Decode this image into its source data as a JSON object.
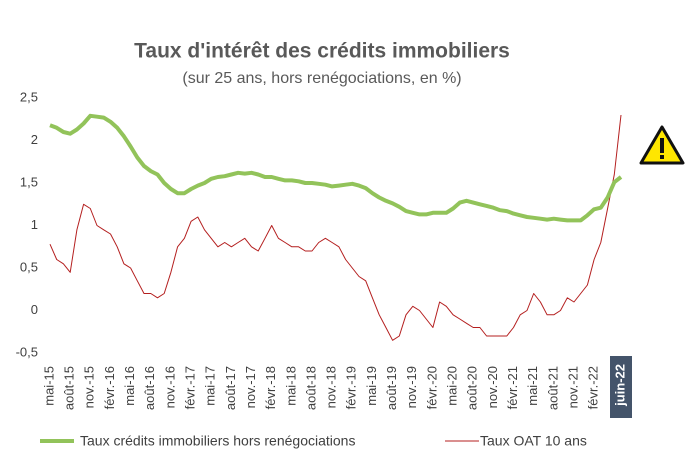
{
  "chart_data": {
    "type": "line",
    "title": "Taux d'intérêt des crédits immobiliers",
    "subtitle": "(sur 25 ans, hors renégociations, en %)",
    "categories": [
      "mai-15",
      null,
      null,
      "août-15",
      null,
      null,
      "nov.-15",
      null,
      null,
      "févr.-16",
      null,
      null,
      "mai-16",
      null,
      null,
      "août-16",
      null,
      null,
      "nov.-16",
      null,
      null,
      "févr.-17",
      null,
      null,
      "mai-17",
      null,
      null,
      "août-17",
      null,
      null,
      "nov.-17",
      null,
      null,
      "févr.-18",
      null,
      null,
      "mai-18",
      null,
      null,
      "août-18",
      null,
      null,
      "nov.-18",
      null,
      null,
      "févr.-19",
      null,
      null,
      "mai-19",
      null,
      null,
      "août-19",
      null,
      null,
      "nov.-19",
      null,
      null,
      "févr.-20",
      null,
      null,
      "mai-20",
      null,
      null,
      "août-20",
      null,
      null,
      "nov.-20",
      null,
      null,
      "févr.-21",
      null,
      null,
      "mai-21",
      null,
      null,
      "août-21",
      null,
      null,
      "nov.-21",
      null,
      null,
      "févr.-22",
      null,
      null,
      null,
      "juin-22"
    ],
    "highlight": {
      "index": 85,
      "color": "#44546a"
    },
    "series": [
      {
        "name": "Taux crédits immobiliers hors renégociations",
        "color": "#92c35a",
        "width": 4,
        "values": [
          2.18,
          2.15,
          2.1,
          2.08,
          2.13,
          2.2,
          2.29,
          2.28,
          2.27,
          2.22,
          2.15,
          2.05,
          1.93,
          1.8,
          1.7,
          1.64,
          1.6,
          1.5,
          1.43,
          1.38,
          1.38,
          1.43,
          1.47,
          1.5,
          1.55,
          1.57,
          1.58,
          1.6,
          1.62,
          1.61,
          1.62,
          1.6,
          1.57,
          1.57,
          1.55,
          1.53,
          1.53,
          1.52,
          1.5,
          1.5,
          1.49,
          1.48,
          1.46,
          1.47,
          1.48,
          1.49,
          1.47,
          1.44,
          1.38,
          1.33,
          1.29,
          1.26,
          1.22,
          1.17,
          1.15,
          1.13,
          1.13,
          1.15,
          1.15,
          1.15,
          1.2,
          1.27,
          1.29,
          1.27,
          1.25,
          1.23,
          1.21,
          1.18,
          1.17,
          1.14,
          1.12,
          1.1,
          1.09,
          1.08,
          1.07,
          1.08,
          1.07,
          1.06,
          1.06,
          1.06,
          1.12,
          1.19,
          1.21,
          1.33,
          1.51,
          1.57
        ]
      },
      {
        "name": "Taux OAT 10 ans",
        "color": "#b41f1f",
        "width": 1,
        "values": [
          0.78,
          0.6,
          0.55,
          0.45,
          0.95,
          1.25,
          1.2,
          1.0,
          0.95,
          0.9,
          0.75,
          0.55,
          0.5,
          0.35,
          0.2,
          0.2,
          0.15,
          0.2,
          0.45,
          0.75,
          0.85,
          1.05,
          1.1,
          0.95,
          0.85,
          0.75,
          0.8,
          0.75,
          0.8,
          0.85,
          0.75,
          0.7,
          0.85,
          1.0,
          0.85,
          0.8,
          0.75,
          0.75,
          0.7,
          0.7,
          0.8,
          0.85,
          0.8,
          0.75,
          0.6,
          0.5,
          0.4,
          0.35,
          0.15,
          -0.05,
          -0.2,
          -0.35,
          -0.3,
          -0.05,
          0.05,
          0.0,
          -0.1,
          -0.2,
          0.1,
          0.05,
          -0.05,
          -0.1,
          -0.15,
          -0.2,
          -0.2,
          -0.3,
          -0.3,
          -0.3,
          -0.3,
          -0.2,
          -0.05,
          0.0,
          0.2,
          0.1,
          -0.05,
          -0.05,
          0.0,
          0.15,
          0.1,
          0.2,
          0.3,
          0.6,
          0.8,
          1.2,
          1.6,
          2.3
        ]
      }
    ],
    "ylim": [
      -0.5,
      2.5
    ],
    "yticks": [
      {
        "value": -0.5,
        "label": "-0,5"
      },
      0,
      {
        "value": 0.5,
        "label": "0,5"
      },
      1,
      {
        "value": 1.5,
        "label": "1,5"
      },
      2,
      {
        "value": 2.5,
        "label": "2,5"
      }
    ],
    "grid": false
  }
}
